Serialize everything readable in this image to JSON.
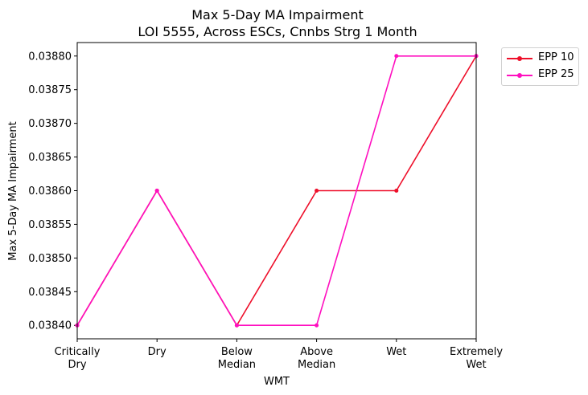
{
  "chart_data": {
    "type": "line",
    "title": "Max 5-Day MA Impairment",
    "subtitle": "LOI 5555, Across ESCs, Cnnbs Strg 1 Month",
    "xlabel": "WMT",
    "ylabel": "Max 5-Day MA Impairment",
    "categories": [
      [
        "Critically",
        "Dry"
      ],
      [
        "Dry"
      ],
      [
        "Below",
        "Median"
      ],
      [
        "Above",
        "Median"
      ],
      [
        "Wet"
      ],
      [
        "Extremely",
        "Wet"
      ]
    ],
    "ylim": [
      0.03838,
      0.03882
    ],
    "yticks": [
      0.0384,
      0.03845,
      0.0385,
      0.03855,
      0.0386,
      0.03865,
      0.0387,
      0.03875,
      0.0388
    ],
    "ytick_labels": [
      "0.03840",
      "0.03845",
      "0.03850",
      "0.03855",
      "0.03860",
      "0.03865",
      "0.03870",
      "0.03875",
      "0.03880"
    ],
    "grid": false,
    "legend_position": "upper right, outside plot",
    "series": [
      {
        "name": "EPP 10",
        "color": "#ee0f2a",
        "values": [
          0.0384,
          0.0386,
          0.0384,
          0.0386,
          0.0386,
          0.0388
        ]
      },
      {
        "name": "EPP 25",
        "color": "#ff0fbf",
        "values": [
          0.0384,
          0.0386,
          0.0384,
          0.0384,
          0.0388,
          0.0388
        ]
      }
    ]
  }
}
